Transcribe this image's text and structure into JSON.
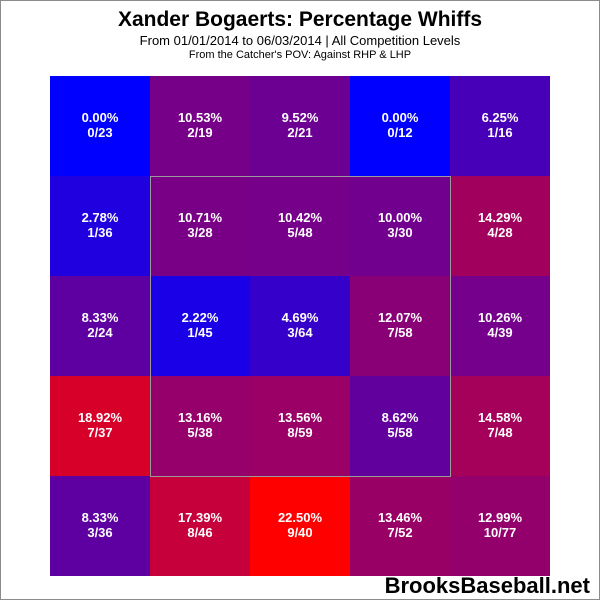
{
  "chart_data": {
    "type": "heatmap",
    "title": "Xander Bogaerts: Percentage Whiffs",
    "subtitle": "From 01/01/2014 to 06/03/2014 | All Competition Levels",
    "subtitle2": "From the Catcher's POV:  Against RHP & LHP",
    "rows": 5,
    "cols": 5,
    "strike_zone": {
      "row_start": 1,
      "row_end": 3,
      "col_start": 1,
      "col_end": 3
    },
    "color_scale": {
      "low": "#0000ff",
      "high": "#ff0000",
      "min": 0,
      "max": 22.5
    },
    "cells": [
      [
        {
          "pct": "0.00%",
          "count": "0/23",
          "value": 0.0
        },
        {
          "pct": "10.53%",
          "count": "2/19",
          "value": 10.53
        },
        {
          "pct": "9.52%",
          "count": "2/21",
          "value": 9.52
        },
        {
          "pct": "0.00%",
          "count": "0/12",
          "value": 0.0
        },
        {
          "pct": "6.25%",
          "count": "1/16",
          "value": 6.25
        }
      ],
      [
        {
          "pct": "2.78%",
          "count": "1/36",
          "value": 2.78
        },
        {
          "pct": "10.71%",
          "count": "3/28",
          "value": 10.71
        },
        {
          "pct": "10.42%",
          "count": "5/48",
          "value": 10.42
        },
        {
          "pct": "10.00%",
          "count": "3/30",
          "value": 10.0
        },
        {
          "pct": "14.29%",
          "count": "4/28",
          "value": 14.29
        }
      ],
      [
        {
          "pct": "8.33%",
          "count": "2/24",
          "value": 8.33
        },
        {
          "pct": "2.22%",
          "count": "1/45",
          "value": 2.22
        },
        {
          "pct": "4.69%",
          "count": "3/64",
          "value": 4.69
        },
        {
          "pct": "12.07%",
          "count": "7/58",
          "value": 12.07
        },
        {
          "pct": "10.26%",
          "count": "4/39",
          "value": 10.26
        }
      ],
      [
        {
          "pct": "18.92%",
          "count": "7/37",
          "value": 18.92
        },
        {
          "pct": "13.16%",
          "count": "5/38",
          "value": 13.16
        },
        {
          "pct": "13.56%",
          "count": "8/59",
          "value": 13.56
        },
        {
          "pct": "8.62%",
          "count": "5/58",
          "value": 8.62
        },
        {
          "pct": "14.58%",
          "count": "7/48",
          "value": 14.58
        }
      ],
      [
        {
          "pct": "8.33%",
          "count": "3/36",
          "value": 8.33
        },
        {
          "pct": "17.39%",
          "count": "8/46",
          "value": 17.39
        },
        {
          "pct": "22.50%",
          "count": "9/40",
          "value": 22.5
        },
        {
          "pct": "13.46%",
          "count": "7/52",
          "value": 13.46
        },
        {
          "pct": "12.99%",
          "count": "10/77",
          "value": 12.99
        }
      ]
    ]
  },
  "brand": "BrooksBaseball.net"
}
